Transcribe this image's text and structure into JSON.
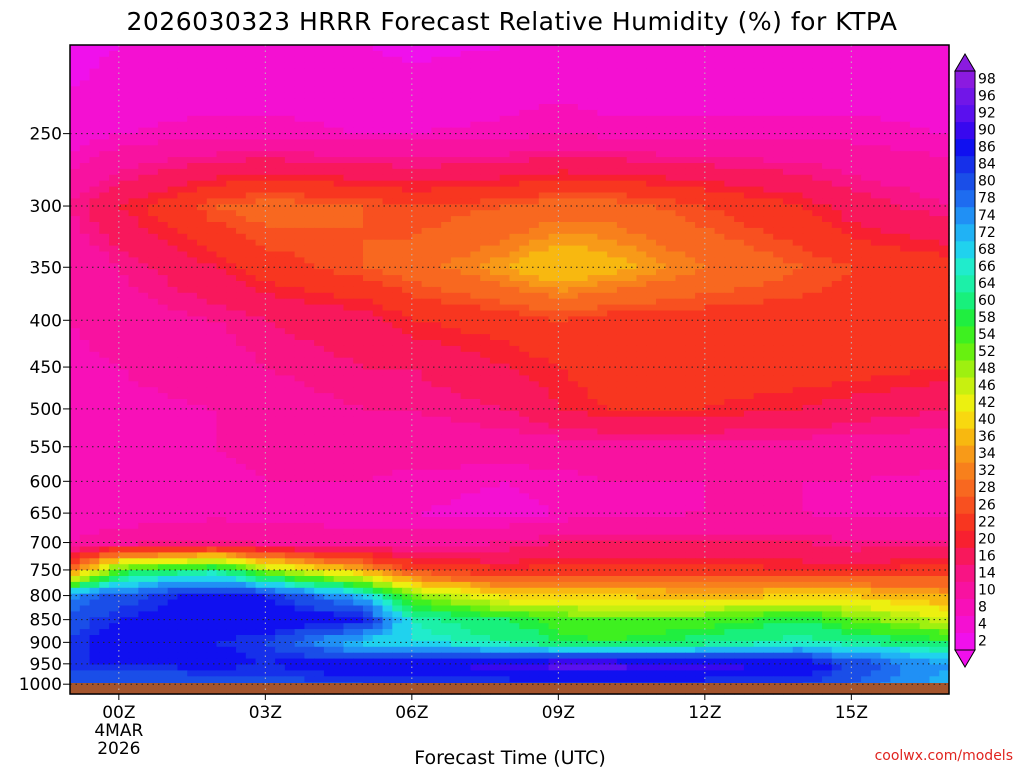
{
  "chart_data": {
    "type": "heatmap",
    "title": "2026030323 HRRR Forecast Relative Humidity (%) for KTPA",
    "xlabel": "Forecast Time (UTC)",
    "ylabel": "",
    "x_ticks": [
      "00Z",
      "03Z",
      "06Z",
      "09Z",
      "12Z",
      "15Z"
    ],
    "x_date_lines": [
      "4MAR",
      "2026"
    ],
    "x_hours": [
      0,
      3,
      6,
      9,
      12,
      15
    ],
    "xlim": [
      -1,
      17
    ],
    "y_ticks": [
      250,
      300,
      350,
      400,
      450,
      500,
      550,
      600,
      650,
      700,
      750,
      800,
      850,
      900,
      950,
      1000
    ],
    "ylim": [
      1025,
      200
    ],
    "yscale": "log",
    "y_reversed": true,
    "grid": true,
    "colorbar": {
      "labels": [
        "98",
        "96",
        "92",
        "90",
        "86",
        "84",
        "80",
        "78",
        "74",
        "72",
        "68",
        "66",
        "64",
        "60",
        "58",
        "54",
        "52",
        "48",
        "46",
        "42",
        "40",
        "36",
        "34",
        "32",
        "28",
        "26",
        "22",
        "20",
        "16",
        "14",
        "10",
        "8",
        "4",
        "2"
      ],
      "colors": [
        "#8b1ae0",
        "#7116e8",
        "#5a10ee",
        "#3808ef",
        "#1010f0",
        "#1630ea",
        "#1a4ee8",
        "#1e6cf0",
        "#2090f5",
        "#20b2f5",
        "#20d2ee",
        "#20eccc",
        "#1cf0a8",
        "#18f07c",
        "#20ee40",
        "#3ef020",
        "#68f010",
        "#9ef010",
        "#c8f010",
        "#ecf010",
        "#f8d810",
        "#f8b810",
        "#f89a18",
        "#f8801c",
        "#f86820",
        "#f85020",
        "#f83620",
        "#f82030",
        "#f8185c",
        "#f81484",
        "#f812a0",
        "#f810b8",
        "#f410d2",
        "#f010ec"
      ]
    },
    "rh_profile_pressure": [
      200,
      250,
      300,
      350,
      400,
      450,
      500,
      550,
      600,
      650,
      700,
      750,
      800,
      850,
      900,
      950,
      1000
    ],
    "rh_profile_hours": [
      -1,
      0,
      2,
      3,
      5,
      6,
      8,
      9,
      10,
      12,
      14,
      15,
      17
    ],
    "rh_values": [
      [
        2,
        4,
        5,
        5,
        4,
        3,
        4,
        5,
        4,
        4,
        5,
        5,
        4
      ],
      [
        6,
        8,
        9,
        9,
        8,
        8,
        9,
        10,
        9,
        9,
        9,
        9,
        8
      ],
      [
        14,
        20,
        28,
        30,
        28,
        26,
        28,
        30,
        30,
        26,
        22,
        18,
        14
      ],
      [
        10,
        14,
        20,
        24,
        28,
        30,
        36,
        40,
        38,
        32,
        28,
        26,
        24
      ],
      [
        10,
        12,
        14,
        16,
        18,
        22,
        24,
        26,
        24,
        24,
        24,
        24,
        24
      ],
      [
        9,
        10,
        12,
        14,
        16,
        16,
        20,
        22,
        24,
        24,
        24,
        24,
        22
      ],
      [
        8,
        9,
        10,
        12,
        14,
        14,
        16,
        20,
        22,
        22,
        20,
        18,
        16
      ],
      [
        8,
        9,
        10,
        11,
        12,
        12,
        12,
        12,
        12,
        12,
        12,
        12,
        12
      ],
      [
        8,
        8,
        9,
        10,
        10,
        9,
        8,
        9,
        10,
        10,
        10,
        10,
        9
      ],
      [
        8,
        8,
        9,
        9,
        9,
        8,
        7,
        8,
        9,
        10,
        10,
        9,
        9
      ],
      [
        10,
        12,
        14,
        12,
        11,
        12,
        14,
        16,
        16,
        16,
        16,
        14,
        14
      ],
      [
        30,
        56,
        64,
        50,
        36,
        26,
        22,
        24,
        24,
        24,
        22,
        22,
        24
      ],
      [
        76,
        82,
        88,
        86,
        72,
        52,
        40,
        40,
        40,
        38,
        40,
        40,
        36
      ],
      [
        82,
        86,
        90,
        90,
        88,
        66,
        60,
        56,
        54,
        56,
        60,
        54,
        46
      ],
      [
        84,
        90,
        86,
        84,
        70,
        68,
        64,
        60,
        58,
        62,
        66,
        64,
        60
      ],
      [
        86,
        86,
        88,
        86,
        90,
        90,
        92,
        94,
        94,
        92,
        90,
        84,
        74
      ],
      [
        80,
        80,
        80,
        82,
        84,
        84,
        84,
        84,
        84,
        84,
        84,
        80,
        72
      ]
    ],
    "annotations": [
      "coolwx.com/models"
    ]
  }
}
